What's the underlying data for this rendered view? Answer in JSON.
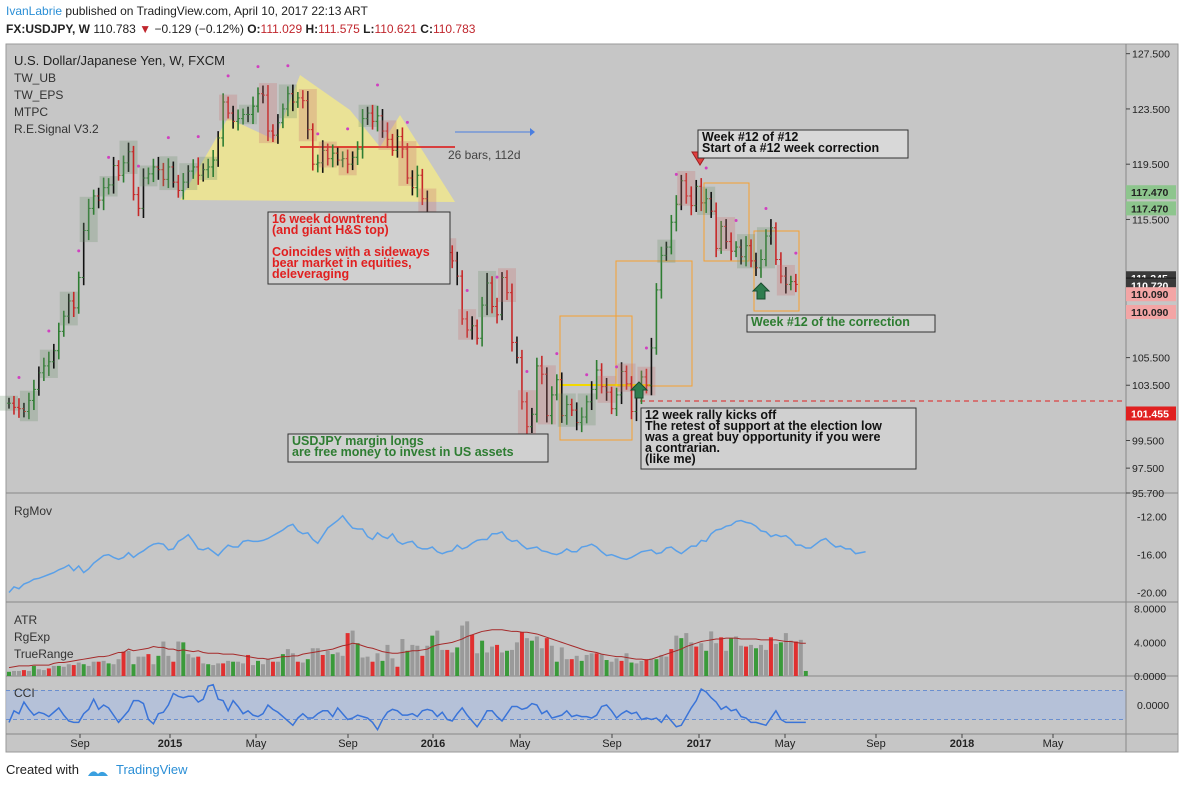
{
  "header": {
    "user": "IvanLabrie",
    "published": "published on TradingView.com, April 10, 2017 22:13 ART",
    "symbol": "FX:USDJPY, W",
    "last": "110.783",
    "arrow": "▼",
    "change": "−0.129 (−0.12%)",
    "o_label": "O:",
    "o": "111.029",
    "h_label": "H:",
    "h": "111.575",
    "l_label": "L:",
    "l": "110.621",
    "c_label": "C:",
    "c": "110.783"
  },
  "legend": {
    "title": "U.S. Dollar/Japanese Yen, W, FXCM",
    "indicators": [
      "TW_UB",
      "TW_EPS",
      "MTPC",
      "R.E.Signal V3.2"
    ]
  },
  "footer": {
    "created": "Created with",
    "brand": "TradingView"
  },
  "colors": {
    "background": "#c6c6c6",
    "bull": "#2e7d32",
    "bear": "#c62828",
    "rgmov_line": "#5aa0e8",
    "atr_line": "#a52a2a",
    "cci_line": "#3a74d8",
    "cci_band": "#aebfe0",
    "annotation_red": "#e02020",
    "annotation_green": "#2e7d32",
    "hs_fill": "#f3e88a",
    "box_orange": "#f5a030"
  },
  "chart_data": [
    {
      "type": "candlestick",
      "title": "U.S. Dollar/Japanese Yen, W, FXCM",
      "ylim": [
        95.7,
        128.2
      ],
      "x_ticks": [
        "Sep",
        "2015",
        "May",
        "Sep",
        "2016",
        "May",
        "Sep",
        "2017",
        "May",
        "Sep",
        "2018",
        "May"
      ],
      "y_ticks": [
        "127.500",
        "123.500",
        "119.500",
        "115.500",
        "105.500",
        "103.500",
        "99.500",
        "97.500",
        "95.700"
      ],
      "price_labels": [
        {
          "text": "117.470",
          "kind": "green"
        },
        {
          "text": "117.470",
          "kind": "green"
        },
        {
          "text": "111.245",
          "kind": "dark"
        },
        {
          "text": "110.783",
          "kind": "black"
        },
        {
          "text": "110.720",
          "kind": "dark"
        },
        {
          "text": "110.090",
          "kind": "red"
        },
        {
          "text": "110.090",
          "kind": "red"
        },
        {
          "text": "101.455",
          "kind": "strongred"
        }
      ],
      "hline": 101.455,
      "range_marker": "26 bars, 112d",
      "annotations": [
        {
          "lines": [
            "Week #12 of #12",
            "Start of a #12 week correction"
          ],
          "style": "dark"
        },
        {
          "lines": [
            "16 week downtrend",
            "(and giant H&S top)",
            "",
            "Coincides with a sideways",
            "bear market in equities,",
            "deleveraging"
          ],
          "style": "red"
        },
        {
          "lines": [
            "Week #12 of the correction"
          ],
          "style": "green"
        },
        {
          "lines": [
            "USDJPY margin longs",
            "are free money to invest in US assets"
          ],
          "style": "green"
        },
        {
          "lines": [
            "12 week rally kicks off",
            "The retest of support at the election low",
            "was a great buy opportunity if you were",
            "a contrarian.",
            "(like me)"
          ],
          "style": "dark"
        }
      ],
      "closes": [
        102.2,
        101.9,
        101.8,
        101.6,
        102.4,
        103.2,
        104.4,
        104.9,
        105.2,
        106.0,
        107.4,
        108.5,
        109.6,
        109.1,
        111.3,
        114.7,
        116.3,
        117.2,
        116.9,
        117.8,
        118.0,
        119.4,
        118.7,
        119.6,
        120.4,
        117.3,
        116.3,
        118.5,
        118.8,
        119.3,
        119.1,
        118.4,
        119.3,
        118.2,
        117.6,
        118.2,
        119.0,
        119.3,
        118.7,
        119.1,
        119.3,
        119.8,
        121.4,
        124.0,
        123.2,
        122.6,
        122.8,
        123.1,
        123.1,
        123.7,
        124.6,
        124.5,
        121.9,
        121.6,
        122.5,
        123.5,
        124.6,
        124.0,
        124.3,
        124.1,
        122.0,
        119.5,
        119.6,
        120.5,
        119.9,
        120.3,
        119.8,
        119.9,
        119.5,
        120.0,
        120.6,
        122.8,
        123.2,
        122.6,
        123.0,
        121.9,
        121.3,
        120.5,
        121.5,
        120.6,
        118.5,
        117.8,
        118.7,
        117.0,
        112.7,
        113.5,
        112.5,
        113.6,
        113.1,
        112.5,
        111.4,
        108.3,
        107.5,
        107.8,
        106.9,
        109.3,
        110.9,
        109.2,
        108.6,
        111.3,
        110.2,
        106.6,
        105.5,
        102.3,
        100.5,
        101.4,
        104.9,
        104.3,
        101.3,
        102.8,
        103.9,
        101.3,
        102.1,
        101.7,
        100.8,
        101.2,
        102.3,
        103.2,
        104.6,
        103.4,
        103.0,
        101.8,
        102.8,
        104.5,
        103.6,
        101.6,
        102.6,
        104.1,
        103.5,
        106.2,
        110.4,
        112.9,
        113.5,
        115.3,
        116.6,
        118.3,
        117.2,
        116.5,
        117.9,
        116.7,
        117.0,
        116.1,
        113.4,
        115.0,
        113.9,
        113.2,
        113.5,
        112.8,
        113.6,
        112.5,
        112.0,
        112.6,
        114.3,
        114.9,
        112.6,
        111.4,
        110.8,
        111.0,
        110.8
      ],
      "avg_range": 1.6
    },
    {
      "type": "line",
      "title": "RgMov",
      "ylim": [
        -21.0,
        -9.5
      ],
      "y_ticks": [
        "-12.00",
        "-16.00",
        "-20.00"
      ],
      "values": [
        -20.0,
        -19.4,
        -19.6,
        -19.1,
        -18.9,
        -18.6,
        -18.5,
        -18.3,
        -18.1,
        -17.9,
        -17.6,
        -17.4,
        -17.1,
        -17.7,
        -17.2,
        -17.9,
        -17.5,
        -16.9,
        -16.5,
        -16.1,
        -16.0,
        -16.3,
        -16.5,
        -16.3,
        -15.8,
        -16.3,
        -15.9,
        -15.6,
        -15.2,
        -14.9,
        -14.8,
        -14.9,
        -15.5,
        -15.4,
        -14.6,
        -14.3,
        -13.9,
        -14.6,
        -15.4,
        -15.5,
        -15.3,
        -15.7,
        -16.1,
        -15.5,
        -15.0,
        -15.2,
        -15.2,
        -14.6,
        -14.5,
        -14.6,
        -14.6,
        -14.5,
        -14.3,
        -14.0,
        -13.7,
        -13.4,
        -13.0,
        -12.8,
        -13.5,
        -13.8,
        -13.7,
        -14.4,
        -14.8,
        -14.0,
        -13.2,
        -12.8,
        -12.4,
        -11.9,
        -12.6,
        -13.2,
        -13.3,
        -13.3,
        -14.1,
        -14.4,
        -13.7,
        -14.1,
        -14.3,
        -13.8,
        -14.6,
        -14.9,
        -14.7,
        -14.6,
        -15.2,
        -15.4,
        -15.4,
        -15.2,
        -15.7,
        -15.9,
        -15.7,
        -15.6,
        -15.0,
        -15.4,
        -15.2,
        -14.8,
        -14.5,
        -14.4,
        -14.4,
        -13.8,
        -13.8,
        -13.6,
        -14.3,
        -14.6,
        -14.5,
        -15.0,
        -15.4,
        -15.3,
        -15.2,
        -15.6,
        -15.7,
        -15.9,
        -16.0,
        -15.8,
        -15.4,
        -15.7,
        -15.7,
        -15.2,
        -15.1,
        -14.9,
        -15.2,
        -15.7,
        -16.1,
        -16.0,
        -16.2,
        -16.4,
        -16.5,
        -16.3,
        -16.0,
        -15.7,
        -15.6,
        -15.5,
        -15.9,
        -15.8,
        -15.3,
        -15.2,
        -15.6,
        -15.9,
        -15.5,
        -15.1,
        -15.1,
        -14.5,
        -14.6,
        -13.8,
        -13.4,
        -13.3,
        -13.0,
        -12.9,
        -12.5,
        -12.4,
        -12.6,
        -12.7,
        -13.0,
        -13.5,
        -13.6,
        -14.1,
        -13.9,
        -14.1,
        -14.0,
        -14.4,
        -15.0,
        -15.0,
        -15.3,
        -15.3,
        -14.9,
        -14.5,
        -14.3,
        -14.8,
        -15.2,
        -15.1,
        -15.4,
        -15.4,
        -15.9,
        -15.8,
        -15.7
      ]
    },
    {
      "type": "bar",
      "title": "ATR",
      "legend": [
        "ATR",
        "RgExp",
        "TrueRange"
      ],
      "ylim": [
        0,
        8.8
      ],
      "y_ticks": [
        "8.0000",
        "4.0000",
        "0.0000"
      ],
      "values": [
        0.5,
        0.6,
        0.6,
        0.7,
        0.6,
        1.2,
        0.8,
        0.7,
        0.9,
        1.2,
        1.2,
        1.1,
        1.4,
        1.3,
        1.6,
        1.4,
        1.2,
        1.7,
        1.7,
        1.8,
        1.5,
        1.4,
        2.0,
        2.9,
        3.0,
        1.4,
        2.3,
        2.3,
        2.6,
        1.4,
        2.4,
        4.1,
        2.4,
        1.7,
        4.1,
        4.0,
        2.6,
        2.2,
        2.3,
        1.5,
        1.4,
        1.3,
        1.5,
        1.5,
        1.8,
        1.7,
        1.7,
        1.5,
        2.5,
        1.3,
        1.8,
        1.4,
        2.0,
        1.7,
        1.7,
        2.6,
        3.2,
        2.7,
        1.7,
        1.6,
        2.0,
        3.3,
        3.3,
        2.5,
        3.0,
        2.6,
        2.8,
        2.4,
        5.1,
        5.4,
        3.9,
        2.2,
        2.3,
        1.7,
        2.7,
        1.8,
        3.7,
        2.1,
        1.1,
        4.4,
        3.0,
        3.7,
        3.6,
        2.4,
        3.6,
        4.8,
        5.4,
        3.1,
        3.1,
        2.8,
        3.4,
        6.0,
        6.5,
        4.9,
        2.7,
        4.2,
        2.8,
        3.5,
        3.7,
        2.8,
        3.0,
        3.1,
        4.0,
        5.2,
        4.5,
        4.2,
        4.7,
        3.3,
        4.5,
        3.6,
        1.7,
        3.4,
        2.0,
        2.0,
        2.4,
        1.8,
        2.5,
        2.7,
        2.7,
        2.6,
        1.9,
        1.7,
        2.1,
        1.8,
        2.7,
        1.6,
        1.5,
        1.8,
        2.0,
        2.1,
        2.0,
        2.5,
        2.3,
        3.2,
        4.8,
        4.5,
        5.1,
        4.0,
        3.5,
        3.9,
        3.0,
        5.3,
        3.9,
        4.6,
        3.0,
        4.5,
        4.7,
        3.6,
        3.5,
        3.7,
        3.3,
        3.7,
        3.1,
        4.6,
        3.8,
        4.0,
        5.1,
        4.2,
        4.1,
        4.3,
        0.6
      ],
      "atr": [
        1.0,
        1.1,
        1.2,
        1.2,
        1.2,
        1.3,
        1.3,
        1.3,
        1.3,
        1.5,
        1.6,
        1.6,
        1.7,
        1.8,
        1.9,
        2.0,
        2.1,
        2.2,
        2.3,
        2.3,
        2.4,
        2.6,
        2.8,
        2.8,
        3.2,
        3.0,
        3.1,
        3.2,
        3.3,
        3.5,
        3.4,
        3.4,
        3.2,
        3.2,
        3.0,
        3.1,
        3.0,
        2.9,
        3.0,
        2.8,
        2.7,
        2.7,
        2.7,
        2.6,
        2.6,
        2.6,
        2.5,
        2.4,
        2.3,
        2.2,
        2.1,
        2.1,
        2.0,
        2.1,
        2.2,
        2.3,
        2.3,
        2.4,
        2.4,
        2.6,
        2.7,
        2.8,
        2.9,
        3.0,
        3.1,
        3.2,
        3.4,
        3.6,
        3.7,
        3.9,
        3.8,
        3.6,
        3.4,
        3.3,
        3.1,
        2.9,
        2.8,
        2.7,
        2.7,
        2.8,
        2.9,
        3.0,
        3.0,
        3.1,
        3.2,
        3.5,
        3.7,
        3.8,
        3.9,
        4.0,
        4.2,
        4.4,
        4.7,
        4.9,
        5.1,
        5.3,
        5.4,
        5.5,
        5.5,
        5.5,
        5.4,
        5.3,
        5.3,
        5.2,
        5.2,
        5.1,
        5.0,
        4.8,
        4.6,
        4.4,
        4.2,
        4.0,
        3.8,
        3.6,
        3.4,
        3.2,
        3.0,
        2.9,
        2.8,
        2.6,
        2.5,
        2.4,
        2.3,
        2.3,
        2.2,
        2.1,
        2.0,
        2.0,
        1.9,
        2.0,
        2.2,
        2.4,
        2.6,
        2.8,
        3.0,
        3.2,
        3.5,
        3.7,
        3.9,
        4.1,
        4.2,
        4.3,
        4.4,
        4.4,
        4.5,
        4.5,
        4.5,
        4.4,
        4.4,
        4.4,
        4.4,
        4.3,
        4.3,
        4.3,
        4.3,
        4.2,
        4.1,
        4.1,
        4.0,
        3.9,
        3.9
      ]
    },
    {
      "type": "line",
      "title": "CCI",
      "ylim": [
        -0.2,
        0.2
      ],
      "y_ticks": [
        "0.0000"
      ],
      "values": [
        -0.12,
        -0.04,
        -0.06,
        0.02,
        -0.03,
        -0.07,
        -0.05,
        -0.06,
        -0.08,
        -0.05,
        -0.02,
        -0.07,
        -0.11,
        -0.12,
        -0.12,
        -0.06,
        -0.03,
        0.04,
        -0.03,
        0.0,
        -0.02,
        -0.07,
        -0.12,
        -0.08,
        -0.04,
        0.03,
        0.03,
        0.01,
        -0.1,
        -0.13,
        -0.06,
        -0.05,
        0.0,
        0.08,
        0.06,
        0.05,
        0.06,
        0.06,
        0.02,
        0.04,
        0.13,
        0.14,
        0.04,
        0.03,
        -0.04,
        0.03,
        -0.01,
        -0.06,
        -0.04,
        -0.07,
        -0.08,
        -0.06,
        0.0,
        -0.03,
        -0.05,
        -0.08,
        -0.11,
        -0.14,
        -0.09,
        -0.06,
        -0.09,
        -0.09,
        -0.06,
        -0.04,
        -0.04,
        -0.08,
        -0.02,
        -0.06,
        -0.1,
        -0.09,
        -0.07,
        -0.08,
        -0.09,
        -0.12,
        -0.17,
        -0.1,
        -0.05,
        -0.03,
        -0.04,
        -0.07,
        -0.07,
        -0.06,
        -0.08,
        -0.04,
        -0.03,
        -0.04,
        -0.08,
        -0.05,
        -0.1,
        -0.11,
        -0.06,
        -0.02,
        -0.07,
        -0.11,
        -0.15,
        -0.1,
        -0.04,
        -0.04,
        -0.08,
        -0.11,
        -0.06,
        -0.01,
        -0.01,
        -0.03,
        -0.02,
        0.01,
        0.0,
        -0.06,
        -0.04,
        -0.09,
        -0.08,
        -0.07,
        -0.04,
        -0.08,
        -0.07,
        -0.08,
        -0.08,
        -0.09,
        -0.07,
        -0.01,
        0.0,
        -0.04,
        -0.09,
        -0.06,
        -0.04,
        -0.06,
        -0.05,
        -0.1,
        -0.09,
        -0.1,
        -0.09,
        -0.12,
        -0.07,
        -0.11,
        -0.15,
        -0.14,
        -0.08,
        -0.02,
        0.03,
        0.11,
        0.09,
        0.05,
        0.02,
        -0.03,
        -0.01,
        -0.04,
        -0.03,
        -0.08,
        -0.09,
        -0.12,
        -0.12,
        -0.13,
        -0.14,
        -0.09,
        -0.04,
        -0.1,
        -0.12,
        -0.12,
        -0.12,
        -0.12,
        -0.12
      ]
    }
  ]
}
